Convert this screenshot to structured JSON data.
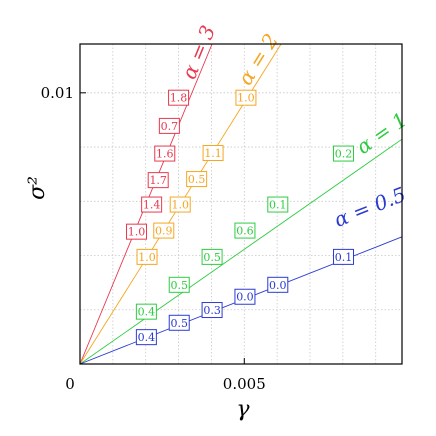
{
  "chart_data": {
    "type": "line",
    "title": "",
    "xlabel": "γ",
    "ylabel": "σ²",
    "xlim": [
      0,
      0.0098
    ],
    "ylim": [
      0,
      0.0118
    ],
    "xticks": [
      {
        "value": 0,
        "label": "0"
      },
      {
        "value": 0.005,
        "label": "0.005"
      }
    ],
    "yticks": [
      {
        "value": 0.01,
        "label": "0.01"
      }
    ],
    "grid": true,
    "series": [
      {
        "name": "α = 3",
        "color": "#e8394f",
        "line": [
          [
            0,
            0
          ],
          [
            0.00402,
            0.0118
          ]
        ],
        "label_pos": [
          0.0038,
          0.0114
        ],
        "points": [
          {
            "x": 0.00172,
            "y": 0.00488,
            "label": "1.0"
          },
          {
            "x": 0.00218,
            "y": 0.00588,
            "label": "1.4"
          },
          {
            "x": 0.00238,
            "y": 0.00678,
            "label": "1.7"
          },
          {
            "x": 0.00258,
            "y": 0.00776,
            "label": "1.6"
          },
          {
            "x": 0.00272,
            "y": 0.00878,
            "label": "0.7"
          },
          {
            "x": 0.003,
            "y": 0.00982,
            "label": "1.8"
          }
        ]
      },
      {
        "name": "α = 2",
        "color": "#f5a623",
        "line": [
          [
            0,
            0
          ],
          [
            0.00612,
            0.0118
          ]
        ],
        "label_pos": [
          0.0056,
          0.0111
        ],
        "points": [
          {
            "x": 0.00204,
            "y": 0.00395,
            "label": "1.0"
          },
          {
            "x": 0.00255,
            "y": 0.00492,
            "label": "0.9"
          },
          {
            "x": 0.00305,
            "y": 0.00588,
            "label": "1.0"
          },
          {
            "x": 0.00355,
            "y": 0.00682,
            "label": "0.5"
          },
          {
            "x": 0.00405,
            "y": 0.00778,
            "label": "1.1"
          },
          {
            "x": 0.00505,
            "y": 0.00982,
            "label": "1.0"
          }
        ]
      },
      {
        "name": "α = 1",
        "color": "#2ecc40",
        "line": [
          [
            0,
            0
          ],
          [
            0.0098,
            0.00829
          ]
        ],
        "label_pos": [
          0.0093,
          0.0083
        ],
        "points": [
          {
            "x": 0.00202,
            "y": 0.00193,
            "label": "0.4"
          },
          {
            "x": 0.00302,
            "y": 0.00292,
            "label": "0.5"
          },
          {
            "x": 0.00402,
            "y": 0.00395,
            "label": "0.5"
          },
          {
            "x": 0.00502,
            "y": 0.00492,
            "label": "0.6"
          },
          {
            "x": 0.00602,
            "y": 0.00588,
            "label": "0.1"
          },
          {
            "x": 0.00802,
            "y": 0.00776,
            "label": "0.2"
          }
        ]
      },
      {
        "name": "α = 0.5",
        "color": "#2b3bd1",
        "line": [
          [
            0,
            0
          ],
          [
            0.0098,
            0.00469
          ]
        ],
        "label_pos": [
          0.0089,
          0.00555
        ],
        "points": [
          {
            "x": 0.00202,
            "y": 0.00099,
            "label": "0.4"
          },
          {
            "x": 0.00302,
            "y": 0.00152,
            "label": "0.5"
          },
          {
            "x": 0.00402,
            "y": 0.00199,
            "label": "0.3"
          },
          {
            "x": 0.00502,
            "y": 0.00248,
            "label": "0.0"
          },
          {
            "x": 0.00602,
            "y": 0.00292,
            "label": "0.0"
          },
          {
            "x": 0.00802,
            "y": 0.00395,
            "label": "0.1"
          }
        ]
      }
    ]
  }
}
